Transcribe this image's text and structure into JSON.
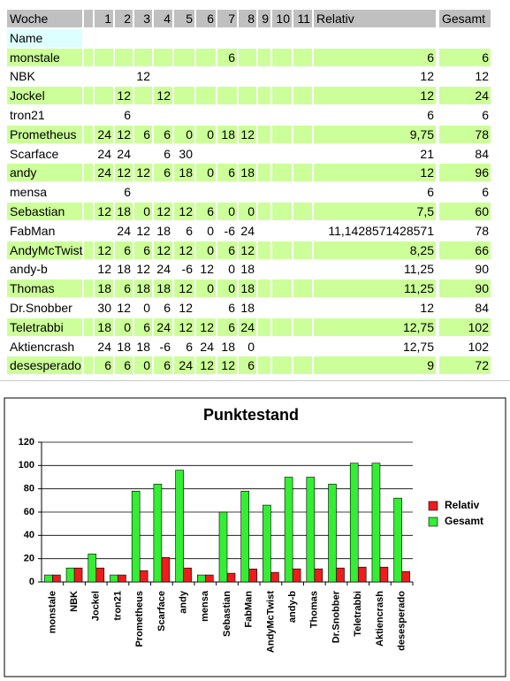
{
  "table": {
    "header": {
      "label": "Woche",
      "weeks": [
        1,
        2,
        3,
        4,
        5,
        6,
        7,
        8,
        9,
        10,
        11
      ],
      "relativ": "Relativ",
      "gesamt": "Gesamt"
    },
    "name_label": "Name",
    "rows": [
      {
        "name": "monstale",
        "weeks": [
          null,
          null,
          null,
          null,
          null,
          null,
          6,
          null,
          null,
          null,
          null
        ],
        "relativ": 6,
        "gesamt": 6
      },
      {
        "name": "NBK",
        "weeks": [
          null,
          null,
          12,
          null,
          null,
          null,
          null,
          null,
          null,
          null,
          null
        ],
        "relativ": 12,
        "gesamt": 12
      },
      {
        "name": "Jockel",
        "weeks": [
          null,
          12,
          null,
          12,
          null,
          null,
          null,
          null,
          null,
          null,
          null
        ],
        "relativ": 12,
        "gesamt": 24
      },
      {
        "name": "tron21",
        "weeks": [
          null,
          6,
          null,
          null,
          null,
          null,
          null,
          null,
          null,
          null,
          null
        ],
        "relativ": 6,
        "gesamt": 6
      },
      {
        "name": "Prometheus",
        "weeks": [
          24,
          12,
          6,
          6,
          0,
          0,
          18,
          12,
          null,
          null,
          null
        ],
        "relativ": "9,75",
        "gesamt": 78
      },
      {
        "name": "Scarface",
        "weeks": [
          24,
          24,
          null,
          6,
          30,
          null,
          null,
          null,
          null,
          null,
          null
        ],
        "relativ": 21,
        "gesamt": 84
      },
      {
        "name": "andy",
        "weeks": [
          24,
          12,
          12,
          6,
          18,
          0,
          6,
          18,
          null,
          null,
          null
        ],
        "relativ": 12,
        "gesamt": 96
      },
      {
        "name": "mensa",
        "weeks": [
          null,
          6,
          null,
          null,
          null,
          null,
          null,
          null,
          null,
          null,
          null
        ],
        "relativ": 6,
        "gesamt": 6
      },
      {
        "name": "Sebastian",
        "weeks": [
          12,
          18,
          0,
          12,
          12,
          6,
          0,
          0,
          null,
          null,
          null
        ],
        "relativ": "7,5",
        "gesamt": 60
      },
      {
        "name": "FabMan",
        "weeks": [
          null,
          24,
          12,
          18,
          6,
          0,
          -6,
          24,
          null,
          null,
          null
        ],
        "relativ": "11,1428571428571",
        "gesamt": 78
      },
      {
        "name": "AndyMcTwist",
        "weeks": [
          12,
          6,
          6,
          12,
          12,
          0,
          6,
          12,
          null,
          null,
          null
        ],
        "relativ": "8,25",
        "gesamt": 66
      },
      {
        "name": "andy-b",
        "weeks": [
          12,
          18,
          12,
          24,
          -6,
          12,
          0,
          18,
          null,
          null,
          null
        ],
        "relativ": "11,25",
        "gesamt": 90
      },
      {
        "name": "Thomas",
        "weeks": [
          18,
          6,
          18,
          18,
          12,
          0,
          0,
          18,
          null,
          null,
          null
        ],
        "relativ": "11,25",
        "gesamt": 90
      },
      {
        "name": "Dr.Snobber",
        "weeks": [
          30,
          12,
          0,
          6,
          12,
          null,
          6,
          18,
          null,
          null,
          null
        ],
        "relativ": 12,
        "gesamt": 84
      },
      {
        "name": "Teletrabbi",
        "weeks": [
          18,
          0,
          6,
          24,
          12,
          12,
          6,
          24,
          null,
          null,
          null
        ],
        "relativ": "12,75",
        "gesamt": 102
      },
      {
        "name": "Aktiencrash",
        "weeks": [
          24,
          18,
          18,
          -6,
          6,
          24,
          18,
          0,
          null,
          null,
          null
        ],
        "relativ": "12,75",
        "gesamt": 102
      },
      {
        "name": "desesperado",
        "weeks": [
          6,
          6,
          0,
          6,
          24,
          12,
          12,
          6,
          null,
          null,
          null
        ],
        "relativ": 9,
        "gesamt": 72
      }
    ]
  },
  "chart_data": {
    "type": "bar",
    "title": "Punktestand",
    "categories": [
      "monstale",
      "NBK",
      "Jockel",
      "tron21",
      "Prometheus",
      "Scarface",
      "andy",
      "mensa",
      "Sebastian",
      "FabMan",
      "AndyMcTwist",
      "andy-b",
      "Thomas",
      "Dr.Snobber",
      "Teletrabbi",
      "Aktiencrash",
      "desesperado"
    ],
    "series": [
      {
        "name": "Relativ",
        "color": "#ee1c1c",
        "values": [
          6,
          12,
          12,
          6,
          9.75,
          21,
          12,
          6,
          7.5,
          11.1428571428571,
          8.25,
          11.25,
          11.25,
          12,
          12.75,
          12.75,
          9
        ]
      },
      {
        "name": "Gesamt",
        "color": "#33ee33",
        "values": [
          6,
          12,
          24,
          6,
          78,
          84,
          96,
          6,
          60,
          78,
          66,
          90,
          90,
          84,
          102,
          102,
          72
        ]
      }
    ],
    "ylim": [
      0,
      120
    ],
    "yticks": [
      0,
      20,
      40,
      60,
      80,
      100,
      120
    ],
    "grid": true,
    "legend": "right"
  }
}
